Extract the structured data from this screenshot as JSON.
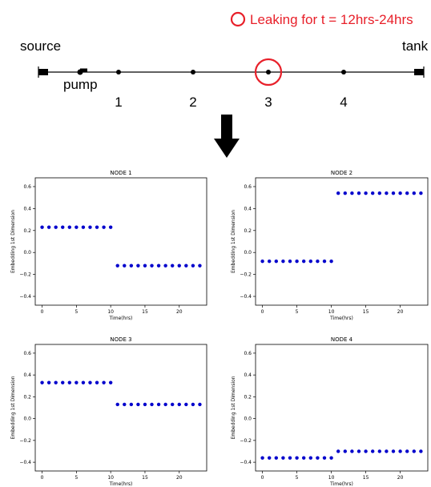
{
  "diagram": {
    "legend_text": "Leaking for t = 12hrs-24hrs",
    "source_label": "source",
    "tank_label": "tank",
    "pump_label": "pump",
    "node_labels": [
      "1",
      "2",
      "3",
      "4"
    ],
    "leak_node": "3",
    "colors": {
      "leak": "#e8202a",
      "line": "#000000",
      "dots": "#0000cc"
    }
  },
  "chart_data": [
    {
      "type": "scatter",
      "title": "NODE 1",
      "xlabel": "Time(hrs)",
      "ylabel": "Embedding 1st Dimension",
      "xlim": [
        -1,
        24
      ],
      "ylim": [
        -0.48,
        0.68
      ],
      "xticks": [
        0,
        5,
        10,
        15,
        20
      ],
      "yticks": [
        -0.4,
        -0.2,
        0.0,
        0.2,
        0.4,
        0.6
      ],
      "ytick_labels": [
        "−0.4",
        "−0.2",
        "0.0",
        "0.2",
        "0.4",
        "0.6"
      ],
      "x": [
        0,
        1,
        2,
        3,
        4,
        5,
        6,
        7,
        8,
        9,
        10,
        11,
        12,
        13,
        14,
        15,
        16,
        17,
        18,
        19,
        20,
        21,
        22,
        23
      ],
      "y": [
        0.23,
        0.23,
        0.23,
        0.23,
        0.23,
        0.23,
        0.23,
        0.23,
        0.23,
        0.23,
        0.23,
        -0.12,
        -0.12,
        -0.12,
        -0.12,
        -0.12,
        -0.12,
        -0.12,
        -0.12,
        -0.12,
        -0.12,
        -0.12,
        -0.12,
        -0.12
      ],
      "grid": false
    },
    {
      "type": "scatter",
      "title": "NODE 2",
      "xlabel": "Time(hrs)",
      "ylabel": "Embedding 1st Dimension",
      "xlim": [
        -1,
        24
      ],
      "ylim": [
        -0.48,
        0.68
      ],
      "xticks": [
        0,
        5,
        10,
        15,
        20
      ],
      "yticks": [
        -0.4,
        -0.2,
        0.0,
        0.2,
        0.4,
        0.6
      ],
      "ytick_labels": [
        "−0.4",
        "−0.2",
        "0.0",
        "0.2",
        "0.4",
        "0.6"
      ],
      "x": [
        0,
        1,
        2,
        3,
        4,
        5,
        6,
        7,
        8,
        9,
        10,
        11,
        12,
        13,
        14,
        15,
        16,
        17,
        18,
        19,
        20,
        21,
        22,
        23
      ],
      "y": [
        -0.08,
        -0.08,
        -0.08,
        -0.08,
        -0.08,
        -0.08,
        -0.08,
        -0.08,
        -0.08,
        -0.08,
        -0.08,
        0.54,
        0.54,
        0.54,
        0.54,
        0.54,
        0.54,
        0.54,
        0.54,
        0.54,
        0.54,
        0.54,
        0.54,
        0.54
      ],
      "grid": false
    },
    {
      "type": "scatter",
      "title": "NODE 3",
      "xlabel": "Time(hrs)",
      "ylabel": "Embedding 1st Dimension",
      "xlim": [
        -1,
        24
      ],
      "ylim": [
        -0.48,
        0.68
      ],
      "xticks": [
        0,
        5,
        10,
        15,
        20
      ],
      "yticks": [
        -0.4,
        -0.2,
        0.0,
        0.2,
        0.4,
        0.6
      ],
      "ytick_labels": [
        "−0.4",
        "−0.2",
        "0.0",
        "0.2",
        "0.4",
        "0.6"
      ],
      "x": [
        0,
        1,
        2,
        3,
        4,
        5,
        6,
        7,
        8,
        9,
        10,
        11,
        12,
        13,
        14,
        15,
        16,
        17,
        18,
        19,
        20,
        21,
        22,
        23
      ],
      "y": [
        0.33,
        0.33,
        0.33,
        0.33,
        0.33,
        0.33,
        0.33,
        0.33,
        0.33,
        0.33,
        0.33,
        0.13,
        0.13,
        0.13,
        0.13,
        0.13,
        0.13,
        0.13,
        0.13,
        0.13,
        0.13,
        0.13,
        0.13,
        0.13
      ],
      "grid": false
    },
    {
      "type": "scatter",
      "title": "NODE 4",
      "xlabel": "Time(hrs)",
      "ylabel": "Embedding 1st Dimension",
      "xlim": [
        -1,
        24
      ],
      "ylim": [
        -0.48,
        0.68
      ],
      "xticks": [
        0,
        5,
        10,
        15,
        20
      ],
      "yticks": [
        -0.4,
        -0.2,
        0.0,
        0.2,
        0.4,
        0.6
      ],
      "ytick_labels": [
        "−0.4",
        "−0.2",
        "0.0",
        "0.2",
        "0.4",
        "0.6"
      ],
      "x": [
        0,
        1,
        2,
        3,
        4,
        5,
        6,
        7,
        8,
        9,
        10,
        11,
        12,
        13,
        14,
        15,
        16,
        17,
        18,
        19,
        20,
        21,
        22,
        23
      ],
      "y": [
        -0.36,
        -0.36,
        -0.36,
        -0.36,
        -0.36,
        -0.36,
        -0.36,
        -0.36,
        -0.36,
        -0.36,
        -0.36,
        -0.3,
        -0.3,
        -0.3,
        -0.3,
        -0.3,
        -0.3,
        -0.3,
        -0.3,
        -0.3,
        -0.3,
        -0.3,
        -0.3,
        -0.3
      ],
      "grid": false
    }
  ]
}
